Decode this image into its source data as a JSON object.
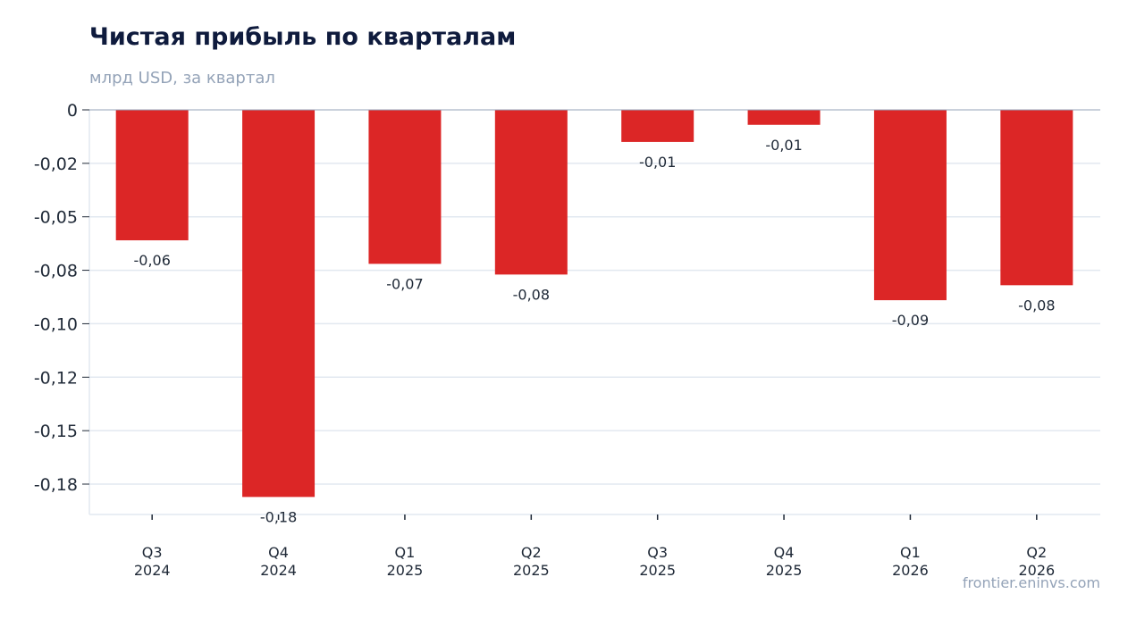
{
  "chart_data": {
    "type": "bar",
    "title": "Чистая прибыль по кварталам",
    "subtitle": "млрд USD, за квартал",
    "categories": [
      [
        "Q3",
        "2024"
      ],
      [
        "Q4",
        "2024"
      ],
      [
        "Q1",
        "2025"
      ],
      [
        "Q2",
        "2025"
      ],
      [
        "Q3",
        "2025"
      ],
      [
        "Q4",
        "2025"
      ],
      [
        "Q1",
        "2026"
      ],
      [
        "Q2",
        "2026"
      ]
    ],
    "values": [
      -0.061,
      -0.181,
      -0.072,
      -0.077,
      -0.015,
      -0.007,
      -0.089,
      -0.082
    ],
    "data_labels": [
      "-0,06",
      "-0,18",
      "-0,07",
      "-0,08",
      "-0,01",
      "-0,01",
      "-0,09",
      "-0,08"
    ],
    "yticks": [
      {
        "value": 0,
        "label": "0"
      },
      {
        "value": -0.025,
        "label": "-0,02"
      },
      {
        "value": -0.05,
        "label": "-0,05"
      },
      {
        "value": -0.075,
        "label": "-0,08"
      },
      {
        "value": -0.1,
        "label": "-0,10"
      },
      {
        "value": -0.125,
        "label": "-0,12"
      },
      {
        "value": -0.15,
        "label": "-0,15"
      },
      {
        "value": -0.175,
        "label": "-0,18"
      }
    ],
    "ylim": [
      -0.1892,
      0
    ],
    "grid": true,
    "bar_color": "#dc2626",
    "grid_color": "#e2e8f0"
  },
  "footer": {
    "source": "frontier.eninvs.com"
  }
}
